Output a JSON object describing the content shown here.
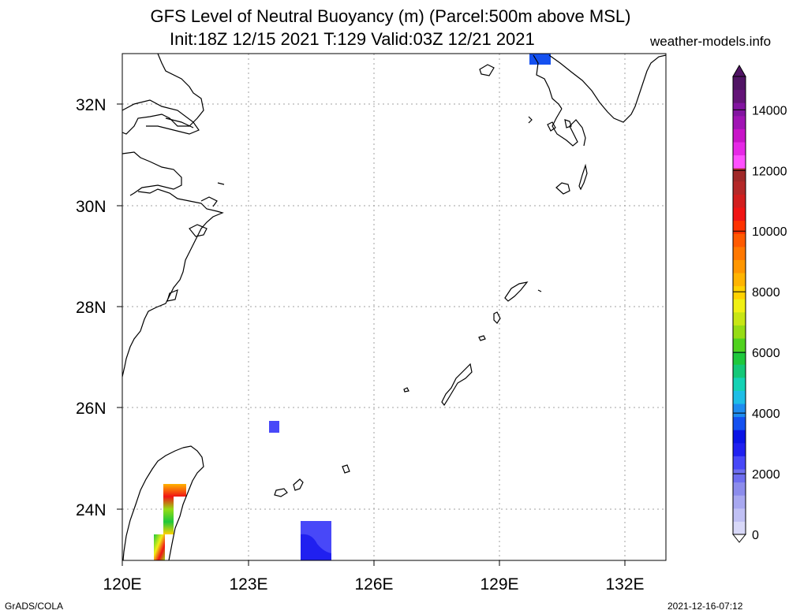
{
  "title_line1": "GFS Level of Neutral Buoyancy (m) (Parcel:500m above MSL)",
  "title_line2": "Init:18Z 12/15 2021 T:129 Valid:03Z 12/21 2021",
  "site": "weather-models.info",
  "footer_left": "GrADS/COLA",
  "footer_right": "2021-12-16-07:12",
  "lat_labels": [
    "32N",
    "30N",
    "28N",
    "26N",
    "24N"
  ],
  "lon_labels": [
    "120E",
    "123E",
    "126E",
    "129E",
    "132E"
  ],
  "colorbar_labels": [
    "0",
    "2000",
    "4000",
    "6000",
    "8000",
    "10000",
    "12000",
    "14000"
  ],
  "colorbar_colors": [
    "#d8d8f8",
    "#c0c0f4",
    "#a8a8f0",
    "#8c8cec",
    "#6e6ef0",
    "#4848f8",
    "#2020f0",
    "#0a14e6",
    "#1450f0",
    "#1e8cf0",
    "#1ebee6",
    "#14d2b4",
    "#14c878",
    "#1ec83c",
    "#50d21e",
    "#96dc14",
    "#c8e614",
    "#f0f014",
    "#ffd200",
    "#ffb400",
    "#ff9600",
    "#ff7800",
    "#ff5a00",
    "#ff3200",
    "#f01414",
    "#d21e1e",
    "#b42828",
    "#a02828",
    "#ff50ff",
    "#e628e6",
    "#c814c8",
    "#a014b4",
    "#8214a0",
    "#641478",
    "#501464"
  ]
}
